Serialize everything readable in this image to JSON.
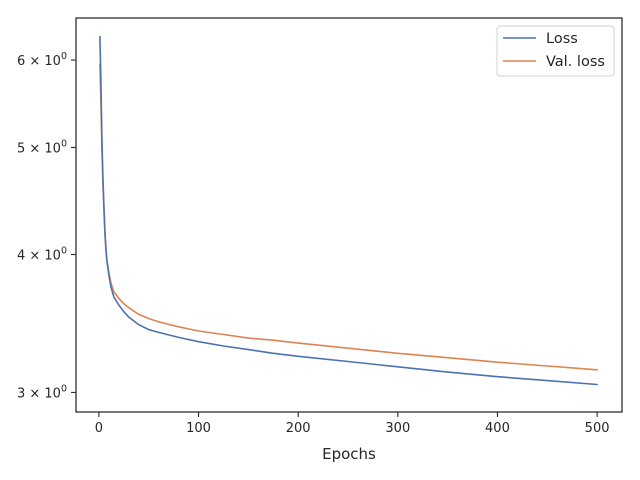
{
  "chart_data": {
    "type": "line",
    "xlabel": "Epochs",
    "ylabel": "",
    "xlim": [
      -23,
      525
    ],
    "ylim": [
      2.88,
      6.55
    ],
    "yscale": "log",
    "grid": false,
    "legend_position": "top-right",
    "x_ticks": [
      {
        "value": 0,
        "label": "0"
      },
      {
        "value": 100,
        "label": "100"
      },
      {
        "value": 200,
        "label": "200"
      },
      {
        "value": 300,
        "label": "300"
      },
      {
        "value": 400,
        "label": "400"
      },
      {
        "value": 500,
        "label": "500"
      }
    ],
    "y_ticks": [
      {
        "value": 3,
        "mantissa": "3",
        "base": "10",
        "exp": "0"
      },
      {
        "value": 4,
        "mantissa": "4",
        "base": "10",
        "exp": "0"
      },
      {
        "value": 5,
        "mantissa": "5",
        "base": "10",
        "exp": "0"
      },
      {
        "value": 6,
        "mantissa": "6",
        "base": "10",
        "exp": "0"
      }
    ],
    "series": [
      {
        "name": "Loss",
        "color": "#4c72b0",
        "x": [
          1,
          2,
          3,
          4,
          5,
          6,
          7,
          8,
          10,
          12,
          15,
          20,
          25,
          30,
          40,
          50,
          60,
          80,
          100,
          125,
          150,
          175,
          200,
          250,
          300,
          350,
          400,
          450,
          500
        ],
        "y": [
          6.3,
          5.75,
          5.1,
          4.7,
          4.42,
          4.2,
          4.05,
          3.95,
          3.83,
          3.74,
          3.66,
          3.6,
          3.55,
          3.51,
          3.455,
          3.42,
          3.4,
          3.365,
          3.335,
          3.305,
          3.28,
          3.255,
          3.235,
          3.2,
          3.165,
          3.13,
          3.1,
          3.075,
          3.05
        ]
      },
      {
        "name": "Val. loss",
        "color": "#dd8452",
        "x": [
          1,
          2,
          3,
          4,
          5,
          6,
          7,
          8,
          10,
          12,
          15,
          20,
          25,
          30,
          40,
          50,
          60,
          80,
          100,
          125,
          150,
          175,
          200,
          250,
          300,
          350,
          400,
          450,
          500
        ],
        "y": [
          5.95,
          5.5,
          5.0,
          4.65,
          4.4,
          4.18,
          4.04,
          3.95,
          3.85,
          3.77,
          3.7,
          3.65,
          3.61,
          3.58,
          3.53,
          3.5,
          3.475,
          3.44,
          3.41,
          3.385,
          3.36,
          3.345,
          3.325,
          3.29,
          3.255,
          3.225,
          3.195,
          3.17,
          3.145
        ]
      }
    ]
  }
}
